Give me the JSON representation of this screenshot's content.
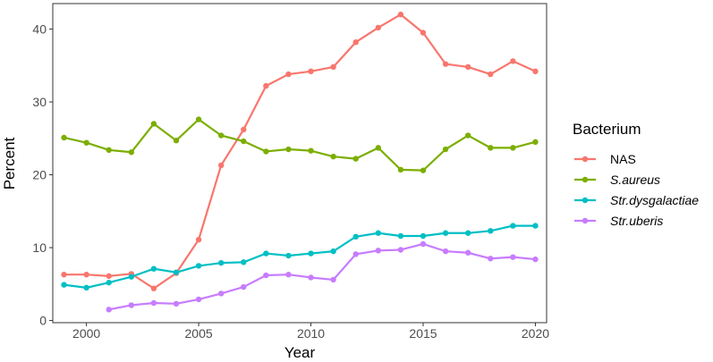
{
  "chart_data": {
    "type": "line",
    "xlabel": "Year",
    "ylabel": "Percent",
    "xlim": [
      1998.5,
      2020.5
    ],
    "ylim": [
      -0.3,
      43.5
    ],
    "x_ticks": [
      2000,
      2005,
      2010,
      2015,
      2020
    ],
    "y_ticks": [
      0,
      10,
      20,
      30,
      40
    ],
    "grid": false,
    "legend": {
      "title": "Bacterium",
      "position": "right"
    },
    "series": [
      {
        "name": "NAS",
        "italic": false,
        "color": "#F8766D",
        "x": [
          1999,
          2000,
          2001,
          2002,
          2003,
          2004,
          2005,
          2006,
          2007,
          2008,
          2009,
          2010,
          2011,
          2012,
          2013,
          2014,
          2015,
          2016,
          2017,
          2018,
          2019,
          2020
        ],
        "y": [
          6.3,
          6.3,
          6.1,
          6.4,
          4.4,
          6.5,
          11.1,
          21.3,
          26.2,
          32.2,
          33.8,
          34.2,
          34.8,
          38.2,
          40.2,
          42.0,
          39.5,
          35.2,
          34.8,
          33.8,
          35.6,
          34.2
        ]
      },
      {
        "name": "S.aureus",
        "italic": true,
        "color": "#7CAE00",
        "x": [
          1999,
          2000,
          2001,
          2002,
          2003,
          2004,
          2005,
          2006,
          2007,
          2008,
          2009,
          2010,
          2011,
          2012,
          2013,
          2014,
          2015,
          2016,
          2017,
          2018,
          2019,
          2020
        ],
        "y": [
          25.1,
          24.4,
          23.4,
          23.1,
          27.0,
          24.7,
          27.6,
          25.4,
          24.6,
          23.2,
          23.5,
          23.3,
          22.5,
          22.2,
          23.7,
          20.7,
          20.6,
          23.5,
          25.4,
          23.7,
          23.7,
          24.5
        ]
      },
      {
        "name": "Str.dysgalactiae",
        "italic": true,
        "color": "#00BFC4",
        "x": [
          1999,
          2000,
          2001,
          2002,
          2003,
          2004,
          2005,
          2006,
          2007,
          2008,
          2009,
          2010,
          2011,
          2012,
          2013,
          2014,
          2015,
          2016,
          2017,
          2018,
          2019,
          2020
        ],
        "y": [
          4.9,
          4.5,
          5.2,
          6.0,
          7.1,
          6.6,
          7.5,
          7.9,
          8.0,
          9.2,
          8.9,
          9.2,
          9.5,
          11.5,
          12.0,
          11.6,
          11.6,
          12.0,
          12.0,
          12.3,
          13.0,
          13.0
        ]
      },
      {
        "name": "Str.uberis",
        "italic": true,
        "color": "#C77CFF",
        "x": [
          2001,
          2002,
          2003,
          2004,
          2005,
          2006,
          2007,
          2008,
          2009,
          2010,
          2011,
          2012,
          2013,
          2014,
          2015,
          2016,
          2017,
          2018,
          2019,
          2020
        ],
        "y": [
          1.5,
          2.1,
          2.4,
          2.3,
          2.9,
          3.7,
          4.6,
          6.2,
          6.3,
          5.9,
          5.6,
          9.1,
          9.6,
          9.7,
          10.5,
          9.5,
          9.3,
          8.5,
          8.7,
          8.4
        ]
      }
    ]
  }
}
